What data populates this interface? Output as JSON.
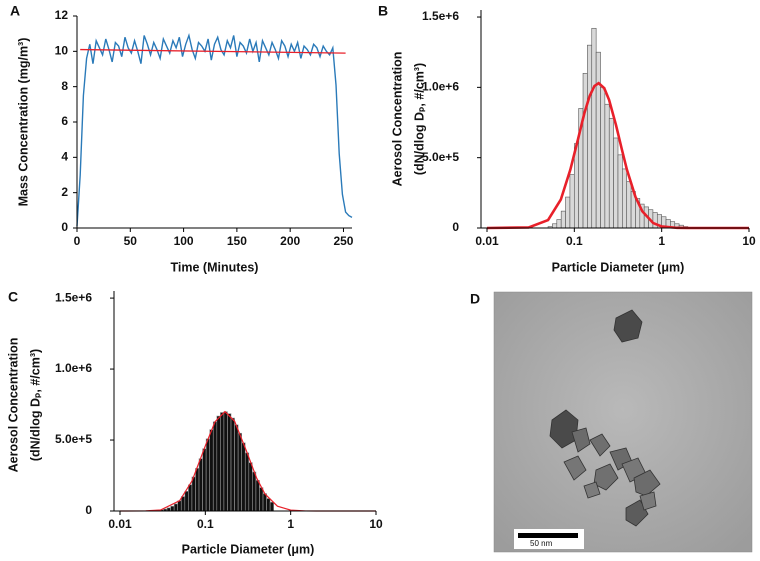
{
  "chart_data": [
    {
      "type": "line",
      "label": "A",
      "xlabel": "Time (Minutes)",
      "ylabel": "Mass Concentration (mg/m³)",
      "xlim": [
        0,
        258
      ],
      "ylim": [
        0,
        12
      ],
      "xticks": [
        0,
        50,
        100,
        150,
        200,
        250
      ],
      "yticks": [
        0,
        2,
        4,
        6,
        8,
        10,
        12
      ],
      "series": [
        {
          "color": "#2a7ab9",
          "x": [
            0,
            3,
            6,
            9,
            12,
            15,
            18,
            21,
            24,
            27,
            30,
            33,
            36,
            39,
            42,
            45,
            48,
            51,
            54,
            57,
            60,
            63,
            66,
            69,
            72,
            75,
            78,
            81,
            84,
            87,
            90,
            93,
            96,
            99,
            102,
            105,
            108,
            111,
            114,
            117,
            120,
            123,
            126,
            129,
            132,
            135,
            138,
            141,
            144,
            147,
            150,
            153,
            156,
            159,
            162,
            165,
            168,
            171,
            174,
            177,
            180,
            183,
            186,
            189,
            192,
            195,
            198,
            201,
            204,
            207,
            210,
            213,
            216,
            219,
            222,
            225,
            228,
            231,
            234,
            237,
            240,
            243,
            246,
            249,
            252,
            255,
            258
          ],
          "values": [
            0.1,
            3.0,
            7.5,
            9.6,
            10.4,
            9.3,
            10.6,
            10.2,
            9.8,
            10.7,
            10.1,
            9.4,
            10.5,
            10.3,
            9.7,
            10.8,
            10.2,
            9.9,
            10.6,
            10.0,
            9.3,
            10.9,
            10.4,
            9.8,
            10.5,
            10.1,
            9.6,
            10.7,
            10.3,
            9.9,
            10.6,
            10.2,
            10.8,
            9.7,
            10.4,
            10.9,
            10.1,
            9.6,
            10.5,
            10.3,
            10.0,
            10.7,
            9.5,
            10.4,
            10.8,
            10.1,
            9.8,
            10.6,
            10.2,
            10.9,
            9.7,
            10.5,
            10.3,
            9.9,
            10.7,
            10.0,
            10.5,
            9.4,
            10.6,
            10.2,
            9.8,
            10.5,
            10.1,
            9.6,
            10.6,
            10.3,
            9.7,
            10.4,
            10.0,
            10.5,
            9.6,
            10.3,
            10.1,
            9.8,
            10.4,
            10.2,
            9.7,
            10.3,
            10.0,
            9.8,
            10.2,
            8.1,
            4.2,
            1.9,
            0.9,
            0.7,
            0.6
          ]
        },
        {
          "color": "#e8202a",
          "x": [
            3,
            252
          ],
          "values": [
            10.1,
            9.9
          ]
        }
      ]
    },
    {
      "type": "histogram",
      "label": "B",
      "xlabel": "Particle Diameter (μm)",
      "ylabel": [
        "Aerosol Concentration",
        "(dN/dlog Dₚ, #/cm³)"
      ],
      "xscale": "log",
      "xlim": [
        0.01,
        10
      ],
      "xticks": [
        0.01,
        0.1,
        1,
        10
      ],
      "ylim": [
        0,
        1550000
      ],
      "yticks": [
        0,
        {
          "value": 500000,
          "label": "5.0e+5"
        },
        {
          "value": 1000000,
          "label": "1.0e+6"
        },
        {
          "value": 1500000,
          "label": "1.5e+6"
        }
      ],
      "color": "#d9d9d9",
      "edge_color": "#555555",
      "bins": [
        0.05,
        0.0561,
        0.063,
        0.0707,
        0.0793,
        0.089,
        0.0999,
        0.1121,
        0.1258,
        0.1411,
        0.1583,
        0.1777,
        0.1994,
        0.2237,
        0.251,
        0.2817,
        0.3161,
        0.3546,
        0.3979,
        0.4465,
        0.501,
        0.5621,
        0.6307,
        0.7077,
        0.7941,
        0.891,
        0.9997,
        1.1217,
        1.2586,
        1.4122,
        1.5845,
        1.7779,
        1.9948
      ],
      "values": [
        10000,
        30000,
        60000,
        120000,
        220000,
        380000,
        600000,
        850000,
        1100000,
        1300000,
        1420000,
        1250000,
        1000000,
        880000,
        780000,
        640000,
        520000,
        420000,
        330000,
        260000,
        210000,
        170000,
        150000,
        130000,
        110000,
        95000,
        80000,
        60000,
        45000,
        30000,
        20000,
        10000
      ],
      "curve": {
        "color": "#e8202a",
        "x": [
          0.01,
          0.03,
          0.05,
          0.07,
          0.09,
          0.11,
          0.13,
          0.15,
          0.17,
          0.19,
          0.22,
          0.25,
          0.3,
          0.35,
          0.4,
          0.5,
          0.6,
          0.8,
          1,
          1.5,
          2,
          10
        ],
        "values": [
          0,
          4000,
          56000,
          202000,
          415000,
          630000,
          814000,
          940000,
          1010000,
          1030000,
          994000,
          911000,
          732000,
          559000,
          415000,
          223000,
          119000,
          35000,
          11000,
          1000,
          0,
          0
        ]
      }
    },
    {
      "type": "histogram",
      "label": "C",
      "xlabel": "Particle Diameter (μm)",
      "ylabel": [
        "Aerosol Concentration",
        "(dN/dlog Dₚ, #/cm³)"
      ],
      "xscale": "log",
      "xlim": [
        0.01,
        10
      ],
      "xticks": [
        0.01,
        0.1,
        1,
        10
      ],
      "ylim": [
        0,
        1550000
      ],
      "yticks": [
        0,
        {
          "value": 500000,
          "label": "5.0e+5"
        },
        {
          "value": 1000000,
          "label": "1.0e+6"
        },
        {
          "value": 1500000,
          "label": "1.5e+6"
        }
      ],
      "color": "#111111",
      "edge_color": "#9a9a9a",
      "bins": [
        0.015,
        0.01651,
        0.01817,
        0.02,
        0.02202,
        0.02424,
        0.02668,
        0.02937,
        0.03232,
        0.03557,
        0.03916,
        0.0431,
        0.04744,
        0.05222,
        0.05747,
        0.06326,
        0.06963,
        0.07664,
        0.08435,
        0.09285,
        0.1022,
        0.1125,
        0.1238,
        0.1363,
        0.15,
        0.1651,
        0.1817,
        0.2,
        0.2202,
        0.2424,
        0.2668,
        0.2937,
        0.3232,
        0.3557,
        0.3916,
        0.431,
        0.4744,
        0.5222,
        0.5747,
        0.6326
      ],
      "values": [
        137,
        270,
        510,
        960,
        1700,
        3000,
        5200,
        8700,
        14000,
        22000,
        34000,
        50000,
        72000,
        102000,
        139000,
        185000,
        240000,
        301000,
        369000,
        439000,
        509000,
        573000,
        629000,
        669000,
        694000,
        700000,
        686000,
        655000,
        607000,
        548000,
        480000,
        410000,
        341000,
        275000,
        216000,
        165000,
        123000,
        88000,
        62000
      ],
      "curve": {
        "color": "#e8202a",
        "x": [
          0.01,
          0.02,
          0.03,
          0.05,
          0.07,
          0.1,
          0.13,
          0.17,
          0.22,
          0.3,
          0.4,
          0.5,
          0.7,
          1,
          1.5,
          2,
          3,
          10
        ],
        "values": [
          0,
          700,
          7500,
          73000,
          213000,
          459000,
          629000,
          700000,
          633000,
          430000,
          231000,
          120000,
          34000,
          6100,
          540,
          0,
          0,
          0
        ]
      }
    }
  ],
  "image": {
    "label": "D",
    "scale_bar": "50 nm"
  }
}
